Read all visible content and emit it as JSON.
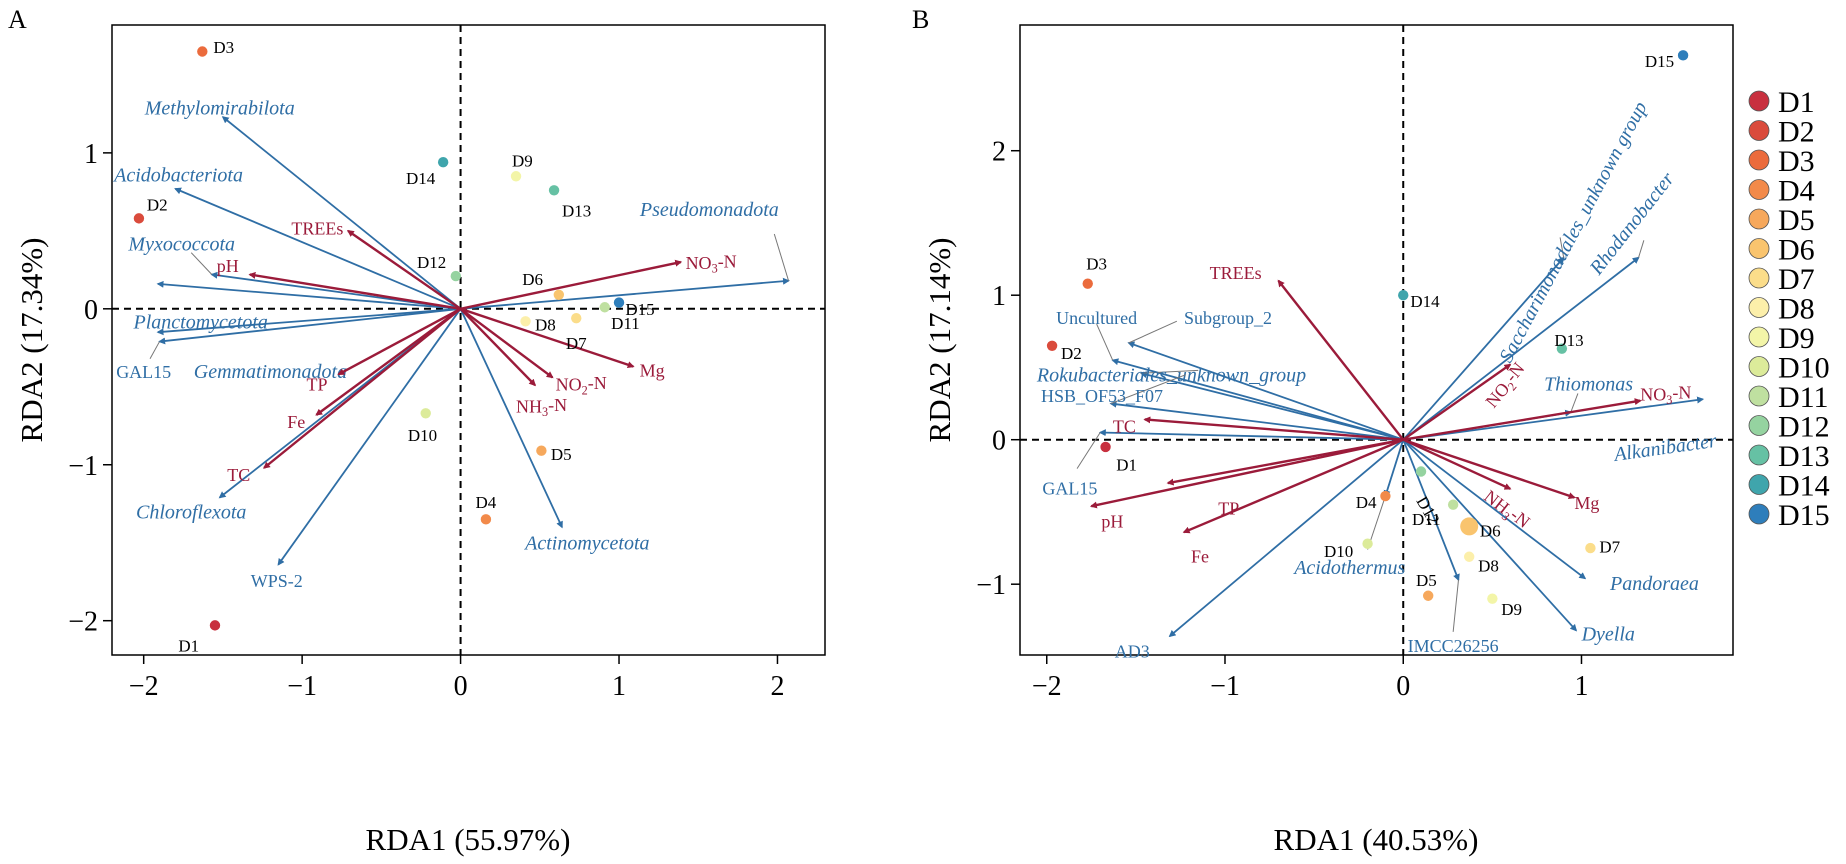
{
  "colors": {
    "env": "#9B1B3A",
    "taxa": "#2F6EA5",
    "axis": "#000000"
  },
  "panel_labels": [
    "A",
    "B"
  ],
  "legend": {
    "items": [
      {
        "label": "D1",
        "color": "#C8303F"
      },
      {
        "label": "D2",
        "color": "#DA4B3C"
      },
      {
        "label": "D3",
        "color": "#EB6B3C"
      },
      {
        "label": "D4",
        "color": "#F28A4A"
      },
      {
        "label": "D5",
        "color": "#F6A85C"
      },
      {
        "label": "D6",
        "color": "#F9C46E"
      },
      {
        "label": "D7",
        "color": "#FBDD8A"
      },
      {
        "label": "D8",
        "color": "#FCEFAA"
      },
      {
        "label": "D9",
        "color": "#F3F5A8"
      },
      {
        "label": "D10",
        "color": "#DCEB9A"
      },
      {
        "label": "D11",
        "color": "#BFE0A0"
      },
      {
        "label": "D12",
        "color": "#95D3A0"
      },
      {
        "label": "D13",
        "color": "#66C1A4"
      },
      {
        "label": "D14",
        "color": "#3FA5AC"
      },
      {
        "label": "D15",
        "color": "#2E7EBB"
      }
    ]
  },
  "chart_data": [
    {
      "type": "scatter",
      "panel": "A",
      "xlabel": "RDA1 (55.97%)",
      "ylabel": "RDA2 (17.34%)",
      "xlim": [
        -2.2,
        2.3
      ],
      "ylim": [
        -2.22,
        1.82
      ],
      "xticks": [
        -2,
        -1,
        0,
        1,
        2
      ],
      "yticks": [
        -2,
        -1,
        0,
        1
      ],
      "xtick_labels": [
        "−2",
        "−1",
        "0",
        "1",
        "2"
      ],
      "ytick_labels": [
        "−2",
        "−1",
        "0",
        "1"
      ],
      "samples": [
        {
          "name": "D1",
          "x": -1.55,
          "y": -2.03,
          "lx": -0.1,
          "ly": -0.13,
          "anchor": "end"
        },
        {
          "name": "D2",
          "x": -2.03,
          "y": 0.58,
          "lx": 0.05,
          "ly": 0.09,
          "anchor": "start"
        },
        {
          "name": "D3",
          "x": -1.63,
          "y": 1.65,
          "lx": 0.07,
          "ly": 0.03,
          "anchor": "start"
        },
        {
          "name": "D4",
          "x": 0.16,
          "y": -1.35,
          "lx": 0.0,
          "ly": 0.11,
          "anchor": "middle"
        },
        {
          "name": "D5",
          "x": 0.51,
          "y": -0.91,
          "lx": 0.06,
          "ly": -0.02,
          "anchor": "start"
        },
        {
          "name": "D6",
          "x": 0.62,
          "y": 0.09,
          "lx": -0.1,
          "ly": 0.1,
          "anchor": "end"
        },
        {
          "name": "D7",
          "x": 0.73,
          "y": -0.06,
          "lx": 0.0,
          "ly": -0.16,
          "anchor": "middle"
        },
        {
          "name": "D8",
          "x": 0.41,
          "y": -0.08,
          "lx": 0.06,
          "ly": -0.02,
          "anchor": "start"
        },
        {
          "name": "D9",
          "x": 0.35,
          "y": 0.85,
          "lx": 0.04,
          "ly": 0.1,
          "anchor": "middle"
        },
        {
          "name": "D10",
          "x": -0.22,
          "y": -0.67,
          "lx": -0.02,
          "ly": -0.14,
          "anchor": "middle"
        },
        {
          "name": "D11",
          "x": 0.91,
          "y": 0.01,
          "lx": 0.04,
          "ly": -0.1,
          "anchor": "start"
        },
        {
          "name": "D12",
          "x": -0.03,
          "y": 0.21,
          "lx": -0.06,
          "ly": 0.09,
          "anchor": "end"
        },
        {
          "name": "D13",
          "x": 0.59,
          "y": 0.76,
          "lx": 0.05,
          "ly": -0.13,
          "anchor": "start"
        },
        {
          "name": "D14",
          "x": -0.11,
          "y": 0.94,
          "lx": -0.05,
          "ly": -0.1,
          "anchor": "end"
        },
        {
          "name": "D15",
          "x": 1.0,
          "y": 0.04,
          "lx": 0.04,
          "ly": -0.04,
          "anchor": "start"
        }
      ],
      "env_vectors": [
        {
          "name": "NO3-N",
          "x": 1.39,
          "y": 0.3,
          "lx": 1.42,
          "ly": 0.3,
          "anchor": "start"
        },
        {
          "name": "Mg",
          "x": 1.09,
          "y": -0.37,
          "lx": 1.13,
          "ly": -0.39,
          "anchor": "start"
        },
        {
          "name": "NO2-N",
          "x": 0.58,
          "y": -0.44,
          "lx": 0.6,
          "ly": -0.48,
          "anchor": "start"
        },
        {
          "name": "NH3-N",
          "x": 0.47,
          "y": -0.49,
          "lx": 0.35,
          "ly": -0.62,
          "anchor": "start"
        },
        {
          "name": "TREEs",
          "x": -0.71,
          "y": 0.5,
          "lx": -0.74,
          "ly": 0.52,
          "anchor": "end"
        },
        {
          "name": "pH",
          "x": -1.33,
          "y": 0.22,
          "lx": -1.4,
          "ly": 0.28,
          "anchor": "end"
        },
        {
          "name": "TP",
          "x": -0.77,
          "y": -0.42,
          "lx": -0.84,
          "ly": -0.48,
          "anchor": "end"
        },
        {
          "name": "Fe",
          "x": -0.91,
          "y": -0.68,
          "lx": -0.98,
          "ly": -0.72,
          "anchor": "end"
        },
        {
          "name": "TC",
          "x": -1.24,
          "y": -1.02,
          "lx": -1.4,
          "ly": -1.06,
          "anchor": "middle"
        }
      ],
      "taxa_vectors": [
        {
          "name": "Pseudomonadota",
          "x": 2.07,
          "y": 0.18,
          "lx": 1.57,
          "ly": 0.64,
          "anchor": "middle",
          "italic": true,
          "cx": 2.07,
          "cy": 0.18,
          "clx": 1.98,
          "cly": 0.48
        },
        {
          "name": "Methylomirabilota",
          "x": -1.5,
          "y": 1.23,
          "lx": -1.52,
          "ly": 1.29,
          "anchor": "middle",
          "italic": true
        },
        {
          "name": "Acidobacteriota",
          "x": -1.8,
          "y": 0.77,
          "lx": -1.78,
          "ly": 0.86,
          "anchor": "middle",
          "italic": true
        },
        {
          "name": "Myxococcota",
          "x": -1.57,
          "y": 0.22,
          "lx": -1.76,
          "ly": 0.42,
          "anchor": "middle",
          "italic": true,
          "cx": -1.57,
          "cy": 0.22,
          "clx": -1.7,
          "cly": 0.36
        },
        {
          "name": "Planctomycetota",
          "x": -1.91,
          "y": 0.16,
          "lx": -1.64,
          "ly": -0.08,
          "anchor": "middle",
          "italic": true
        },
        {
          "name": "Gemmatimonadota",
          "x": -1.91,
          "y": -0.15,
          "lx": -1.2,
          "ly": -0.4,
          "anchor": "middle",
          "italic": true
        },
        {
          "name": "GAL15",
          "x": -1.9,
          "y": -0.21,
          "lx": -2.0,
          "ly": -0.4,
          "anchor": "middle",
          "italic": false,
          "cx": -1.9,
          "cy": -0.21,
          "clx": -1.96,
          "cly": -0.32
        },
        {
          "name": "Chloroflexota",
          "x": -1.52,
          "y": -1.21,
          "lx": -1.7,
          "ly": -1.3,
          "anchor": "middle",
          "italic": true
        },
        {
          "name": "WPS-2",
          "x": -1.15,
          "y": -1.64,
          "lx": -1.16,
          "ly": -1.74,
          "anchor": "middle",
          "italic": false
        },
        {
          "name": "Actinomycetota",
          "x": 0.64,
          "y": -1.4,
          "lx": 0.8,
          "ly": -1.5,
          "anchor": "middle",
          "italic": true
        }
      ]
    },
    {
      "type": "scatter",
      "panel": "B",
      "xlabel": "RDA1 (40.53%)",
      "ylabel": "RDA2 (17.14%)",
      "xlim": [
        -2.15,
        1.85
      ],
      "ylim": [
        -1.49,
        2.87
      ],
      "xticks": [
        -2,
        -1,
        0,
        1
      ],
      "yticks": [
        -1,
        0,
        1,
        2
      ],
      "xtick_labels": [
        "−2",
        "−1",
        "0",
        "1"
      ],
      "ytick_labels": [
        "−1",
        "0",
        "1",
        "2"
      ],
      "samples": [
        {
          "name": "D1",
          "x": -1.67,
          "y": -0.05,
          "lx": 0.06,
          "ly": -0.12,
          "anchor": "start"
        },
        {
          "name": "D2",
          "x": -1.97,
          "y": 0.65,
          "lx": 0.05,
          "ly": -0.05,
          "anchor": "start"
        },
        {
          "name": "D3",
          "x": -1.77,
          "y": 1.08,
          "lx": 0.05,
          "ly": 0.14,
          "anchor": "middle"
        },
        {
          "name": "D4",
          "x": -0.1,
          "y": -0.39,
          "lx": -0.05,
          "ly": -0.04,
          "anchor": "end"
        },
        {
          "name": "D5",
          "x": 0.14,
          "y": -1.08,
          "lx": -0.01,
          "ly": 0.11,
          "anchor": "middle"
        },
        {
          "name": "D6",
          "x": 0.37,
          "y": -0.6,
          "lx": 0.06,
          "ly": -0.03,
          "anchor": "start"
        },
        {
          "name": "D7",
          "x": 1.05,
          "y": -0.75,
          "lx": 0.05,
          "ly": 0.01,
          "anchor": "start"
        },
        {
          "name": "D8",
          "x": 0.37,
          "y": -0.81,
          "lx": 0.05,
          "ly": -0.06,
          "anchor": "start"
        },
        {
          "name": "D9",
          "x": 0.5,
          "y": -1.1,
          "lx": 0.05,
          "ly": -0.07,
          "anchor": "start"
        },
        {
          "name": "D10",
          "x": -0.2,
          "y": -0.72,
          "lx": -0.08,
          "ly": -0.05,
          "anchor": "end"
        },
        {
          "name": "D11",
          "x": 0.28,
          "y": -0.45,
          "lx": -0.07,
          "ly": -0.1,
          "anchor": "end"
        },
        {
          "name": "D12",
          "x": 0.1,
          "y": -0.22,
          "lx": 0.0,
          "ly": -0.18,
          "anchor": "start",
          "rot": 60
        },
        {
          "name": "D13",
          "x": 0.89,
          "y": 0.63,
          "lx": 0.04,
          "ly": 0.06,
          "anchor": "middle"
        },
        {
          "name": "D14",
          "x": 0.0,
          "y": 1.0,
          "lx": 0.04,
          "ly": -0.04,
          "anchor": "start"
        },
        {
          "name": "D15",
          "x": 1.57,
          "y": 2.66,
          "lx": -0.05,
          "ly": -0.04,
          "anchor": "end"
        }
      ],
      "env_vectors": [
        {
          "name": "TREEs",
          "x": -0.7,
          "y": 1.1,
          "lx": -0.94,
          "ly": 1.16,
          "anchor": "middle"
        },
        {
          "name": "TC",
          "x": -1.45,
          "y": 0.14,
          "lx": -1.5,
          "ly": 0.1,
          "anchor": "end"
        },
        {
          "name": "pH",
          "x": -1.75,
          "y": -0.46,
          "lx": -1.57,
          "ly": -0.56,
          "anchor": "end"
        },
        {
          "name": "TP",
          "x": -1.32,
          "y": -0.3,
          "lx": -0.92,
          "ly": -0.47,
          "anchor": "end"
        },
        {
          "name": "Fe",
          "x": -1.23,
          "y": -0.64,
          "lx": -1.09,
          "ly": -0.8,
          "anchor": "end"
        },
        {
          "name": "NO2-N",
          "x": 0.6,
          "y": 0.52,
          "lx": 0.57,
          "ly": 0.38,
          "anchor": "middle",
          "rot": -50
        },
        {
          "name": "NO3-N",
          "x": 1.33,
          "y": 0.27,
          "lx": 1.33,
          "ly": 0.32,
          "anchor": "start"
        },
        {
          "name": "NH3-N",
          "x": 0.6,
          "y": -0.34,
          "lx": 0.47,
          "ly": -0.37,
          "anchor": "start",
          "rot": 38
        },
        {
          "name": "Mg",
          "x": 0.96,
          "y": -0.4,
          "lx": 0.96,
          "ly": -0.43,
          "anchor": "start"
        }
      ],
      "taxa_vectors": [
        {
          "name": "Saccharimonadales_unknown group",
          "x": 0.9,
          "y": 1.26,
          "lx": 0.95,
          "ly": 1.44,
          "anchor": "middle",
          "italic": true,
          "rot": -62,
          "cx": 0.9,
          "cy": 1.26,
          "clx": 0.88,
          "cly": 1.4
        },
        {
          "name": "Rhodanobacter",
          "x": 1.32,
          "y": 1.26,
          "lx": 1.28,
          "ly": 1.5,
          "anchor": "middle",
          "italic": true,
          "rot": -52,
          "cx": 1.32,
          "cy": 1.26,
          "clx": 1.35,
          "cly": 1.38
        },
        {
          "name": "Thiomonas",
          "x": 0.94,
          "y": 0.19,
          "lx": 1.04,
          "ly": 0.39,
          "anchor": "middle",
          "italic": true,
          "cx": 0.94,
          "cy": 0.19,
          "clx": 0.98,
          "cly": 0.32
        },
        {
          "name": "Alkanibacter",
          "x": 1.68,
          "y": 0.28,
          "lx": 1.47,
          "ly": -0.05,
          "anchor": "middle",
          "italic": true,
          "rot": -8
        },
        {
          "name": "Subgroup_2",
          "x": -1.54,
          "y": 0.67,
          "lx": -1.23,
          "ly": 0.85,
          "anchor": "start",
          "italic": false,
          "cx": -1.54,
          "cy": 0.67,
          "clx": -1.27,
          "cly": 0.82
        },
        {
          "name": "Uncultured",
          "x": -1.63,
          "y": 0.55,
          "lx": -1.72,
          "ly": 0.85,
          "anchor": "middle",
          "italic": false,
          "cx": -1.63,
          "cy": 0.55,
          "clx": -1.72,
          "cly": 0.8
        },
        {
          "name": "Rokubacteriales_unknown_group",
          "x": -1.47,
          "y": 0.46,
          "lx": -1.3,
          "ly": 0.45,
          "anchor": "middle",
          "italic": true,
          "cx": -1.47,
          "cy": 0.46,
          "clx": -1.15,
          "cly": 0.48
        },
        {
          "name": "HSB_OF53_F07",
          "x": -1.64,
          "y": 0.25,
          "lx": -1.69,
          "ly": 0.31,
          "anchor": "middle",
          "italic": false,
          "cx": -1.64,
          "cy": 0.25,
          "clx": -1.22,
          "cly": 0.45
        },
        {
          "name": "GAL15",
          "x": -1.7,
          "y": 0.05,
          "lx": -1.87,
          "ly": -0.33,
          "anchor": "middle",
          "italic": false,
          "cx": -1.7,
          "cy": 0.05,
          "clx": -1.83,
          "cly": -0.2
        },
        {
          "name": "AD3",
          "x": -1.31,
          "y": -1.36,
          "lx": -1.52,
          "ly": -1.46,
          "anchor": "middle",
          "italic": false
        },
        {
          "name": "Acidothermus",
          "x": -0.1,
          "y": -0.39,
          "lx": -0.3,
          "ly": -0.88,
          "anchor": "middle",
          "italic": true,
          "cx": -0.1,
          "cy": -0.39,
          "clx": -0.2,
          "cly": -0.76
        },
        {
          "name": "IMCC26256",
          "x": 0.31,
          "y": -0.97,
          "lx": 0.28,
          "ly": -1.42,
          "anchor": "middle",
          "italic": false,
          "cx": 0.31,
          "cy": -0.97,
          "clx": 0.28,
          "cly": -1.33
        },
        {
          "name": "Pandoraea",
          "x": 1.02,
          "y": -0.96,
          "lx": 1.16,
          "ly": -0.99,
          "anchor": "start",
          "italic": true
        },
        {
          "name": "Dyella",
          "x": 0.97,
          "y": -1.32,
          "lx": 1.15,
          "ly": -1.34,
          "anchor": "middle",
          "italic": true
        }
      ]
    }
  ]
}
